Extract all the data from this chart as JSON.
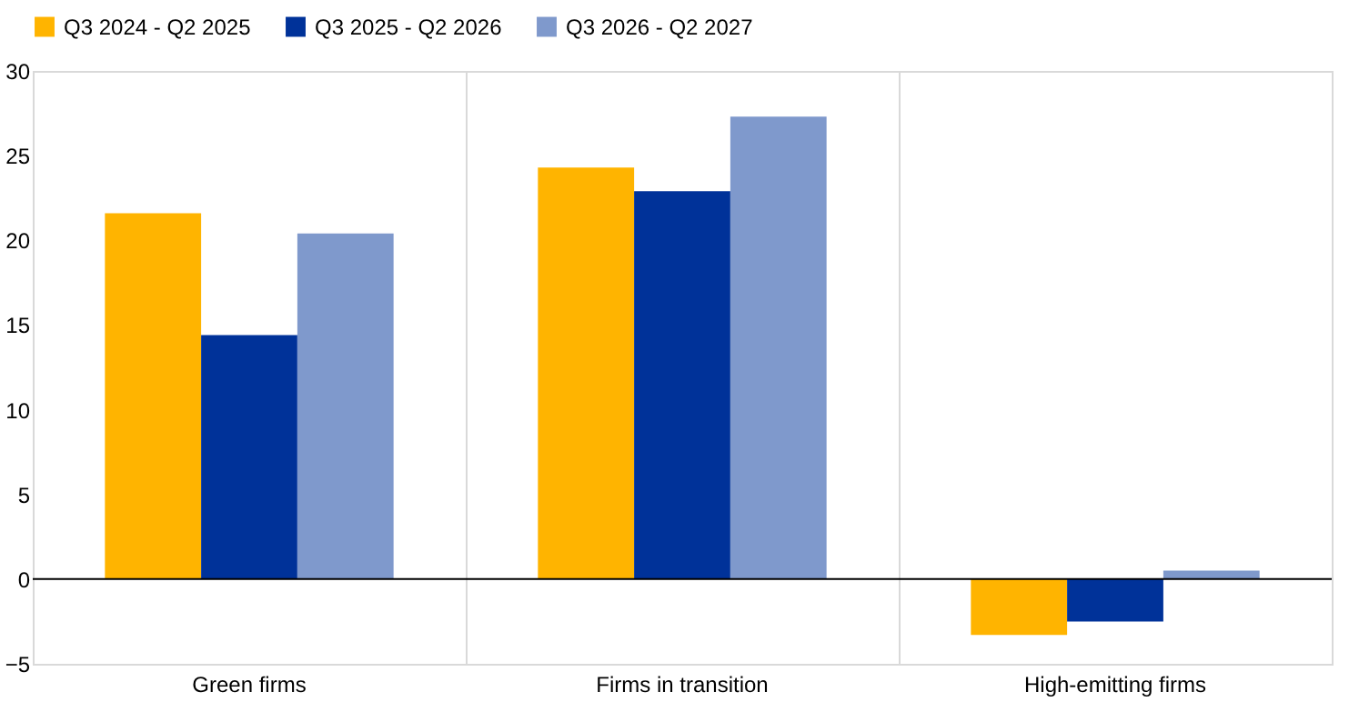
{
  "chart_data": {
    "type": "bar",
    "categories": [
      "Green firms",
      "Firms in transition",
      "High-emitting firms"
    ],
    "series": [
      {
        "name": "Q3 2024 - Q2 2025",
        "color": "#ffb400",
        "values": [
          21.6,
          24.3,
          -3.3
        ]
      },
      {
        "name": "Q3 2025 - Q2 2026",
        "color": "#003299",
        "values": [
          14.4,
          22.9,
          -2.5
        ]
      },
      {
        "name": "Q3 2026 - Q2 2027",
        "color": "#7f99cc",
        "values": [
          20.4,
          27.3,
          0.5
        ]
      }
    ],
    "ylim": [
      -5,
      30
    ],
    "yticks": [
      -5,
      0,
      5,
      10,
      15,
      20,
      25,
      30
    ],
    "grid": "x",
    "legend": "top left"
  }
}
